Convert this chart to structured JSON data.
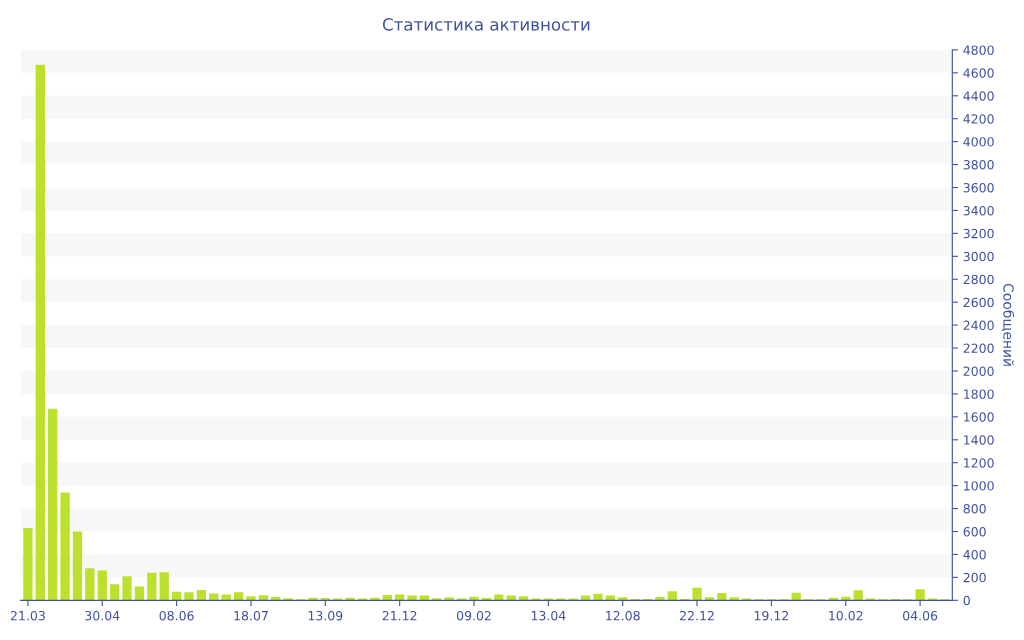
{
  "chart_data": {
    "type": "bar",
    "title": "Статистика активности",
    "ylabel": "Сообщений",
    "categories": [
      "21.03",
      null,
      null,
      null,
      null,
      null,
      "30.04",
      null,
      null,
      null,
      null,
      null,
      "08.06",
      null,
      null,
      null,
      null,
      null,
      "18.07",
      null,
      null,
      null,
      null,
      null,
      "13.09",
      null,
      null,
      null,
      null,
      null,
      "21.12",
      null,
      null,
      null,
      null,
      null,
      "09.02",
      null,
      null,
      null,
      null,
      null,
      "13.04",
      null,
      null,
      null,
      null,
      null,
      "12.08",
      null,
      null,
      null,
      null,
      null,
      "22.12",
      null,
      null,
      null,
      null,
      null,
      "19.12",
      null,
      null,
      null,
      null,
      null,
      "10.02",
      null,
      null,
      null,
      null,
      null,
      "04.06",
      null,
      null
    ],
    "values": [
      630,
      4670,
      1670,
      940,
      600,
      280,
      260,
      140,
      210,
      120,
      240,
      245,
      75,
      70,
      90,
      60,
      50,
      70,
      35,
      45,
      30,
      17,
      9,
      23,
      20,
      15,
      23,
      15,
      23,
      47,
      50,
      41,
      41,
      17,
      26,
      15,
      32,
      20,
      50,
      41,
      35,
      15,
      15,
      15,
      15,
      41,
      58,
      41,
      26,
      12,
      12,
      29,
      79,
      12,
      110,
      26,
      64,
      26,
      15,
      9,
      9,
      9,
      67,
      9,
      9,
      23,
      32,
      87,
      15,
      9,
      12,
      9,
      96,
      15,
      9
    ],
    "color": "#bce02e",
    "ylim": [
      0,
      4800
    ],
    "yticks": [
      0,
      200,
      400,
      600,
      800,
      1000,
      1200,
      1400,
      1600,
      1800,
      2000,
      2200,
      2400,
      2600,
      2800,
      3000,
      3200,
      3400,
      3600,
      3800,
      4000,
      4200,
      4400,
      4600,
      4800
    ],
    "bands": [
      {
        "axis": "y",
        "from": 200,
        "to": 400,
        "color": "#f7f7f7"
      },
      {
        "axis": "y",
        "from": 600,
        "to": 800,
        "color": "#f7f7f7"
      },
      {
        "axis": "y",
        "from": 1000,
        "to": 1200,
        "color": "#f7f7f7"
      },
      {
        "axis": "y",
        "from": 1400,
        "to": 1600,
        "color": "#f7f7f7"
      },
      {
        "axis": "y",
        "from": 1800,
        "to": 2000,
        "color": "#f7f7f7"
      },
      {
        "axis": "y",
        "from": 2200,
        "to": 2400,
        "color": "#f7f7f7"
      },
      {
        "axis": "y",
        "from": 2600,
        "to": 2800,
        "color": "#f7f7f7"
      },
      {
        "axis": "y",
        "from": 3000,
        "to": 3200,
        "color": "#f7f7f7"
      },
      {
        "axis": "y",
        "from": 3400,
        "to": 3600,
        "color": "#f7f7f7"
      },
      {
        "axis": "y",
        "from": 3800,
        "to": 4000,
        "color": "#f7f7f7"
      },
      {
        "axis": "y",
        "from": 4200,
        "to": 4400,
        "color": "#f7f7f7"
      },
      {
        "axis": "y",
        "from": 4600,
        "to": 4800,
        "color": "#f7f7f7"
      }
    ],
    "grid": false,
    "legend": false
  }
}
